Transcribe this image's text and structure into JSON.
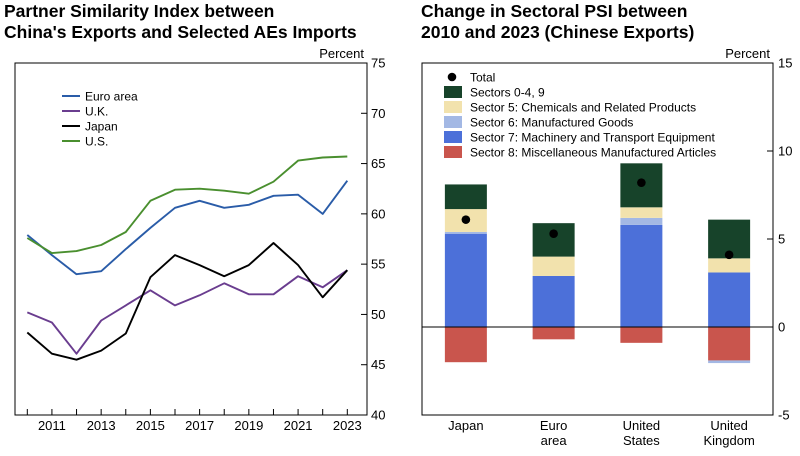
{
  "chart_data": [
    {
      "type": "line",
      "title_lines": [
        "Partner Similarity Index between",
        "China's Exports and Selected AEs Imports"
      ],
      "ylabel": "Percent",
      "ylim": [
        40,
        75
      ],
      "yticks": [
        40,
        45,
        50,
        55,
        60,
        65,
        70,
        75
      ],
      "xlim": [
        2009.5,
        2023.8
      ],
      "xticks": [
        2011,
        2013,
        2015,
        2017,
        2019,
        2021,
        2023
      ],
      "legend_position": "top-left",
      "x": [
        2010,
        2011,
        2012,
        2013,
        2014,
        2015,
        2016,
        2017,
        2018,
        2019,
        2020,
        2021,
        2022,
        2023
      ],
      "series": [
        {
          "name": "Euro area",
          "color": "#2a5ca8",
          "values": [
            57.9,
            55.9,
            54.0,
            54.3,
            56.5,
            58.6,
            60.6,
            61.3,
            60.6,
            60.9,
            61.8,
            61.9,
            60.0,
            63.3
          ]
        },
        {
          "name": "U.K.",
          "color": "#6a3d8f",
          "values": [
            50.2,
            49.2,
            46.1,
            49.4,
            50.9,
            52.4,
            50.9,
            51.9,
            53.1,
            52.0,
            52.0,
            53.8,
            52.7,
            54.4
          ]
        },
        {
          "name": "Japan",
          "color": "#000000",
          "values": [
            48.2,
            46.1,
            45.5,
            46.4,
            48.1,
            53.7,
            55.9,
            54.9,
            53.8,
            54.9,
            57.1,
            54.9,
            51.7,
            54.4
          ]
        },
        {
          "name": "U.S.",
          "color": "#4a8f2f",
          "values": [
            57.6,
            56.1,
            56.3,
            56.9,
            58.2,
            61.3,
            62.4,
            62.5,
            62.3,
            62.0,
            63.2,
            65.3,
            65.6,
            65.7
          ]
        }
      ]
    },
    {
      "type": "bar",
      "stacked": true,
      "title_lines": [
        "Change in Sectoral PSI between",
        "2010 and 2023 (Chinese Exports)"
      ],
      "ylabel": "Percent",
      "ylim": [
        -5,
        15
      ],
      "yticks": [
        -5,
        0,
        5,
        10,
        15
      ],
      "legend_position": "top-left",
      "categories": [
        [
          "Japan"
        ],
        [
          "Euro",
          "area"
        ],
        [
          "United",
          "States"
        ],
        [
          "United",
          "Kingdom"
        ]
      ],
      "total": {
        "name": "Total",
        "color": "#000000",
        "values": [
          6.1,
          5.3,
          8.2,
          4.1
        ]
      },
      "series": [
        {
          "name": "Sectors 0-4, 9",
          "color": "#17432a",
          "values": [
            1.4,
            1.9,
            2.5,
            2.2
          ]
        },
        {
          "name": "Sector 5: Chemicals and Related Products",
          "color": "#f2e2ad",
          "values": [
            1.3,
            1.1,
            0.6,
            0.8
          ]
        },
        {
          "name": "Sector 6: Manufactured Goods",
          "color": "#a3b8e4",
          "values": [
            0.1,
            0.0,
            0.4,
            0.0
          ]
        },
        {
          "name": "Sector 7: Machinery and Transport Equipment",
          "color": "#4c70d9",
          "values": [
            5.3,
            2.9,
            5.8,
            3.1
          ]
        },
        {
          "name": "Sector 8: Miscellaneous Manufactured Articles",
          "color": "#c9554d",
          "values": [
            -2.0,
            -0.7,
            -0.9,
            -1.9
          ]
        }
      ],
      "extra_negative": {
        "series": "Sector 6: Manufactured Goods",
        "values": [
          0,
          0,
          0,
          -0.15
        ]
      }
    }
  ]
}
